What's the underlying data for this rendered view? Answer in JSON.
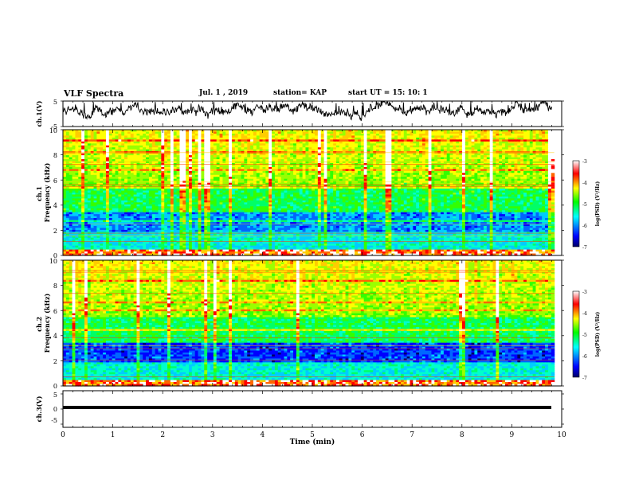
{
  "header": {
    "title": "VLF Spectra",
    "date": "Jul.  1  , 2019",
    "station": "station= KAP",
    "start": "start  UT  =   15: 10: 1"
  },
  "chart_data": [
    {
      "type": "line",
      "panel": "ch1-waveform",
      "ylabel": "ch.1(V)",
      "ylim": [
        -5,
        5
      ],
      "yticks": [
        "5",
        "-5"
      ],
      "xlim": [
        0,
        10
      ],
      "color": "#000000"
    },
    {
      "type": "heatmap",
      "panel": "ch1-spectrogram",
      "ylabel": "ch.1\nFrequency  (kHz)",
      "ylim": [
        0,
        10
      ],
      "yticks": [
        "0",
        "2",
        "4",
        "6",
        "8",
        "10"
      ],
      "xlim": [
        0,
        10
      ],
      "colorbar": {
        "label": "log(PSD) (V²/Hz)",
        "range": [
          -7,
          -3
        ],
        "ticks": [
          "-3",
          "-4",
          "-5",
          "-6",
          "-7"
        ],
        "colors": [
          "#000066",
          "#0000ff",
          "#00ffff",
          "#00ff00",
          "#ffff00",
          "#ff0000",
          "#ffffff"
        ]
      }
    },
    {
      "type": "heatmap",
      "panel": "ch2-spectrogram",
      "ylabel": "ch.2\nFrequency  (kHz)",
      "ylim": [
        0,
        10
      ],
      "yticks": [
        "0",
        "2",
        "4",
        "6",
        "8",
        "10"
      ],
      "xlim": [
        0,
        10
      ],
      "colorbar": {
        "label": "log(PSD) (V²/Hz)",
        "range": [
          -7,
          -3
        ],
        "ticks": [
          "-3",
          "-4",
          "-5",
          "-6",
          "-7"
        ],
        "colors": [
          "#000066",
          "#0000ff",
          "#00ffff",
          "#00ff00",
          "#ffff00",
          "#ff0000",
          "#ffffff"
        ]
      }
    },
    {
      "type": "line",
      "panel": "ch3-waveform",
      "ylabel": "ch.3(V)",
      "ylim": [
        -5,
        5
      ],
      "yticks": [
        "5",
        "0",
        "-5"
      ],
      "xlim": [
        0,
        10
      ],
      "values": [
        [
          0,
          -1.5
        ],
        [
          9.8,
          -1.5
        ]
      ],
      "color": "#000000"
    }
  ],
  "xaxis": {
    "label": "Time  (min)",
    "ticks": [
      "0",
      "1",
      "2",
      "3",
      "4",
      "5",
      "6",
      "7",
      "8",
      "9",
      "10"
    ]
  }
}
